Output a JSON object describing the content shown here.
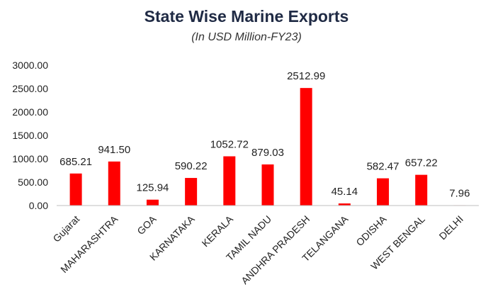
{
  "chart_data": {
    "type": "bar",
    "title": "State Wise Marine Exports",
    "subtitle": "(In USD Million-FY23)",
    "categories": [
      "Gujarat",
      "MAHARASHTRA",
      "GOA",
      "KARNATAKA",
      "KERALA",
      "TAMIL NADU",
      "ANDHRA PRADESH",
      "TELANGANA",
      "ODISHA",
      "WEST BENGAL",
      "DELHI"
    ],
    "values": [
      685.21,
      941.5,
      125.94,
      590.22,
      1052.72,
      879.03,
      2512.99,
      45.14,
      582.47,
      657.22,
      7.96
    ],
    "data_labels": [
      "685.21",
      "941.50",
      "125.94",
      "590.22",
      "1052.72",
      "879.03",
      "2512.99",
      "45.14",
      "582.47",
      "657.22",
      "7.96"
    ],
    "yticks": [
      "0.00",
      "500.00",
      "1000.00",
      "1500.00",
      "2000.00",
      "2500.00",
      "3000.00"
    ],
    "ylim": [
      0,
      3000
    ],
    "xlabel": "",
    "ylabel": "",
    "grid": false,
    "bar_color": "#ff0000",
    "axis_color": "#bfbfbf"
  }
}
